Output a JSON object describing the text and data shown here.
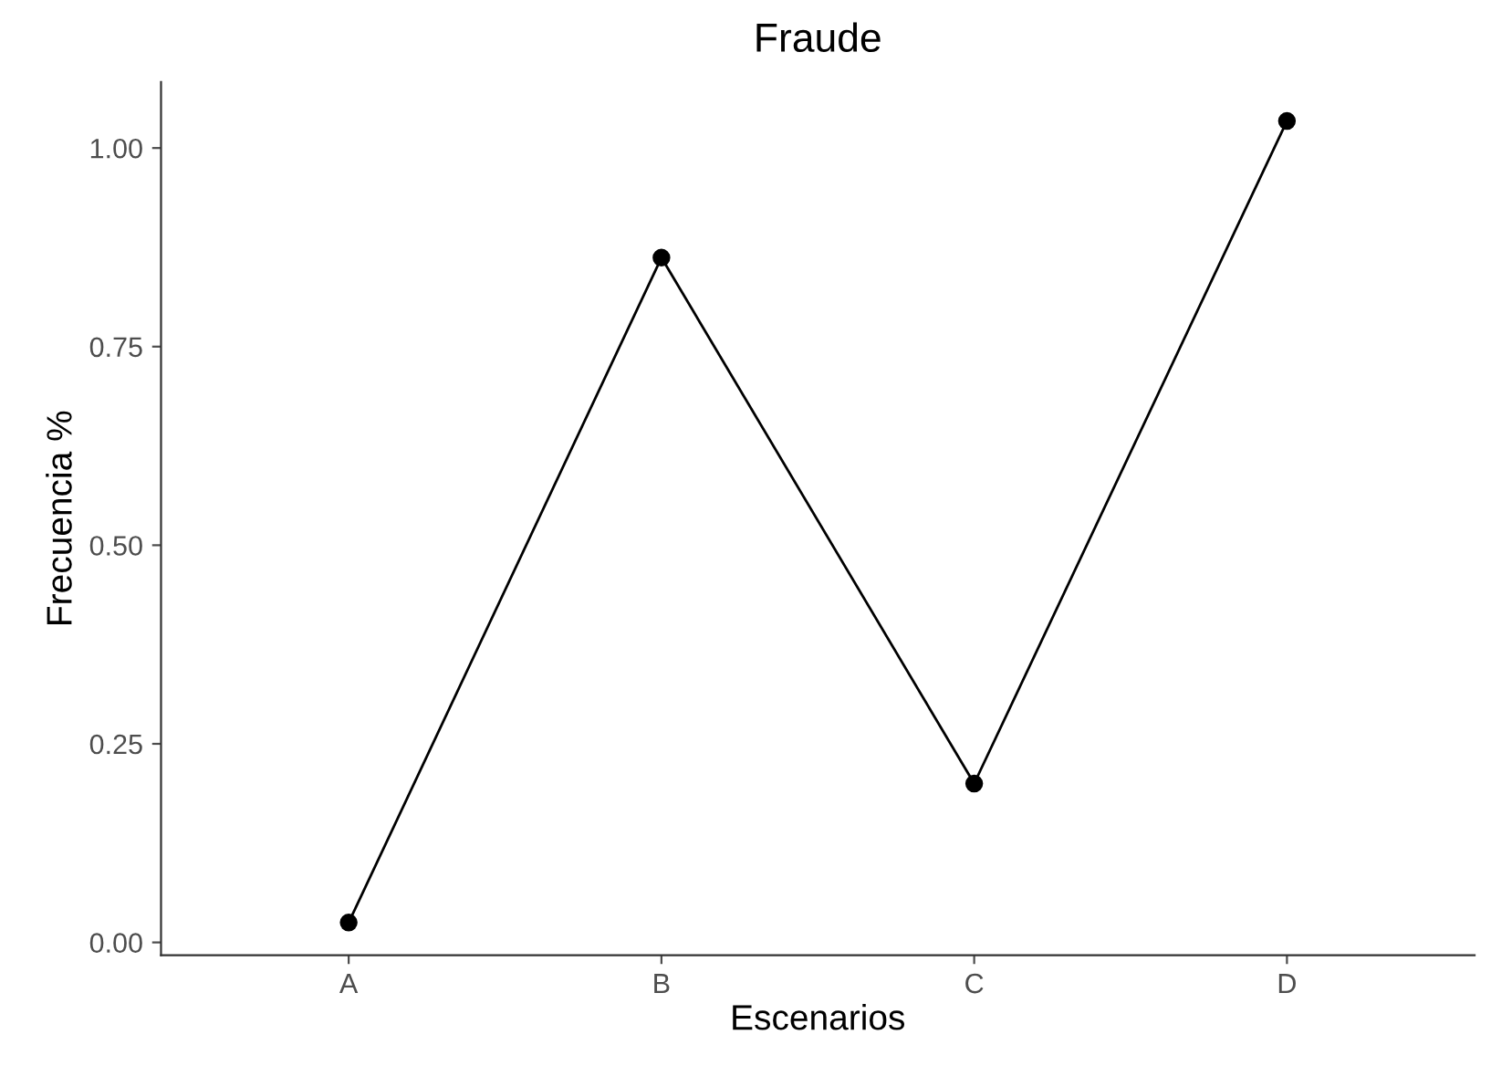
{
  "chart_data": {
    "type": "line",
    "title": "Fraude",
    "xlabel": "Escenarios",
    "ylabel": "Frecuencia %",
    "categories": [
      "A",
      "B",
      "C",
      "D"
    ],
    "series": [
      {
        "color": "#000000",
        "values": [
          0.025,
          0.862,
          0.2,
          1.034
        ]
      }
    ],
    "ylim": [
      -0.016,
      1.083
    ],
    "yticks": [
      {
        "value": 0,
        "label": "0.00"
      },
      {
        "value": 0.25,
        "label": "0.25"
      },
      {
        "value": 0.5,
        "label": "0.50"
      },
      {
        "value": 0.75,
        "label": "0.75"
      },
      {
        "value": 1,
        "label": "1.00"
      }
    ],
    "grid": false,
    "marker": "circle",
    "line_style": "solid"
  }
}
